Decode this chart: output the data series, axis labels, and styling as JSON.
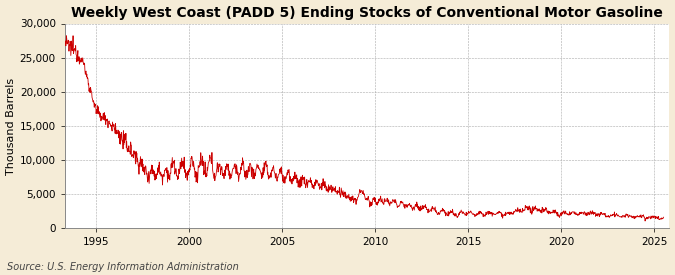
{
  "title": "Weekly West Coast (PADD 5) Ending Stocks of Conventional Motor Gasoline",
  "ylabel": "Thousand Barrels",
  "source": "Source: U.S. Energy Information Administration",
  "line_color": "#CC0000",
  "figure_bg_color": "#F5ECD7",
  "plot_bg_color": "#FFFFFF",
  "grid_color": "#AAAAAA",
  "ylim": [
    0,
    30000
  ],
  "yticks": [
    0,
    5000,
    10000,
    15000,
    20000,
    25000,
    30000
  ],
  "xlim_start": 1993.3,
  "xlim_end": 2025.8,
  "xticks": [
    1995,
    2000,
    2005,
    2010,
    2015,
    2020,
    2025
  ],
  "title_fontsize": 10,
  "axis_fontsize": 8,
  "tick_fontsize": 7.5,
  "source_fontsize": 7
}
